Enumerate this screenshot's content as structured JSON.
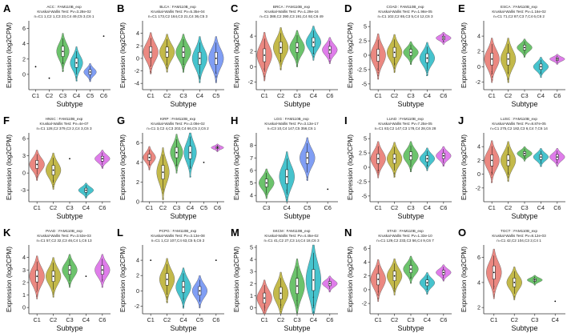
{
  "figure": {
    "xlabel": "Subtype",
    "ylabel": "Expression (log2CPM)"
  },
  "colors": {
    "C1": "#e8736b",
    "C2": "#b8ad2a",
    "C3": "#52b852",
    "C4": "#26b8c4",
    "C5": "#6a8df2",
    "C6": "#d966e6"
  },
  "chart_data": [
    {
      "label": "A",
      "type": "violin",
      "title": "ACC : FAM110B_exp",
      "test": "Kruskal-Wallis Test: Pv=3.28e-02",
      "counts": "n=C1 1,C2 1,C3 23,C4 49,C5 3,C6 1",
      "categories": [
        "C1",
        "C2",
        "C3",
        "C4",
        "C5",
        "C6"
      ],
      "medians": [
        1.0,
        -0.5,
        3.0,
        1.5,
        0.3,
        5.0
      ],
      "spread": [
        0,
        0,
        1.9,
        1.7,
        0.9,
        0
      ],
      "ylim": [
        -2,
        7
      ],
      "yticks": [
        0,
        2,
        4,
        6
      ]
    },
    {
      "label": "B",
      "type": "violin",
      "title": "BLCA : FAM110B_exp",
      "test": "Kruskal-Wallis Test: Pv=5.35e-04",
      "counts": "n=C1 173,C2 164,C3 21,C4 36,C5 3",
      "categories": [
        "C1",
        "C2",
        "C3",
        "C4",
        "C5"
      ],
      "medians": [
        1.0,
        1.0,
        1.0,
        0.0,
        0.0
      ],
      "spread": [
        2.5,
        2.3,
        2.3,
        2.8,
        2.8
      ],
      "ylim": [
        -5,
        6
      ],
      "yticks": [
        -4,
        -2,
        0,
        2,
        4
      ]
    },
    {
      "label": "C",
      "type": "violin",
      "title": "BRCA : FAM110B_exp",
      "test": "Kruskal-Wallis Test: Pv=1.29e-16",
      "counts": "n=C1 388,C2 390,C3 191,C4 92,C6 49",
      "categories": [
        "C1",
        "C2",
        "C3",
        "C4",
        "C6"
      ],
      "medians": [
        1.5,
        2.5,
        2.5,
        3.2,
        2.2
      ],
      "spread": [
        2.4,
        2.1,
        1.8,
        1.7,
        1.3
      ],
      "ylim": [
        -3,
        6
      ],
      "yticks": [
        -2,
        0,
        2,
        4
      ]
    },
    {
      "label": "D",
      "type": "violin",
      "title": "COAD : FAM110B_exp",
      "test": "Kruskal-Wallis Test: Pv=1.96e-05",
      "counts": "n=C1 102,C2 65,C3 5,C4 12,C6 3",
      "categories": [
        "C1",
        "C2",
        "C3",
        "C4",
        "C6"
      ],
      "medians": [
        0.0,
        0.5,
        0.5,
        -0.5,
        3.0
      ],
      "spread": [
        3.0,
        2.5,
        1.5,
        2.2,
        0.8
      ],
      "ylim": [
        -6,
        6
      ],
      "yticks": [
        -5.0,
        -2.5,
        0.0,
        2.5,
        5.0
      ]
    },
    {
      "label": "E",
      "type": "violin",
      "title": "ESCA : FAM110B_exp",
      "test": "Kruskal-Wallis Test: Pv=1.16e-02",
      "counts": "n=C1 71,C2 87,C3 7,C4 6,C6 2",
      "categories": [
        "C1",
        "C2",
        "C3",
        "C4",
        "C6"
      ],
      "medians": [
        1.0,
        1.0,
        2.5,
        0.0,
        1.0
      ],
      "spread": [
        2.2,
        2.2,
        0.9,
        1.0,
        0.5
      ],
      "ylim": [
        -3,
        6
      ],
      "yticks": [
        -2,
        0,
        2,
        4
      ]
    },
    {
      "label": "F",
      "type": "violin",
      "title": "HNSC : FAM110B_exp",
      "test": "Kruskal-Wallis Test: Pv=4e-07",
      "counts": "n=C1 128,C2 379,C3 2,C4 3,C6 3",
      "categories": [
        "C1",
        "C2",
        "C3",
        "C4",
        "C6"
      ],
      "medians": [
        1.5,
        0.5,
        2.5,
        -3.0,
        2.5
      ],
      "spread": [
        2.0,
        2.4,
        0,
        1.0,
        1.2
      ],
      "ylim": [
        -5,
        7
      ],
      "yticks": [
        -3,
        0,
        3,
        6
      ]
    },
    {
      "label": "G",
      "type": "violin",
      "title": "KIRP : FAM110B_exp",
      "test": "Kruskal-Wallis Test: Pv=2.09e-02",
      "counts": "n=C1 3,C2 4,C3 202,C4 66,C5 2,C6 2",
      "categories": [
        "C1",
        "C2",
        "C3",
        "C4",
        "C5",
        "C6"
      ],
      "medians": [
        4.5,
        3.0,
        5.0,
        5.0,
        4.0,
        5.5
      ],
      "spread": [
        0.9,
        2.0,
        1.5,
        1.8,
        0,
        0.3
      ],
      "ylim": [
        0,
        7
      ],
      "yticks": [
        0,
        2,
        4,
        6
      ]
    },
    {
      "label": "H",
      "type": "violin",
      "title": "LGG : FAM110B_exp",
      "test": "Kruskal-Wallis Test: Pv=3.13e-17",
      "counts": "n=C3 10,C4 147,C5 356,C6 1",
      "categories": [
        "C3",
        "C4",
        "C5",
        "C6"
      ],
      "medians": [
        5.0,
        5.5,
        7.0,
        4.5
      ],
      "spread": [
        0.9,
        1.6,
        1.3,
        0
      ],
      "ylim": [
        3.5,
        9
      ],
      "yticks": [
        4,
        5,
        6,
        7,
        8
      ]
    },
    {
      "label": "I",
      "type": "violin",
      "title": "LUAD : FAM110B_exp",
      "test": "Kruskal-Wallis Test: Pv=7.25e-05",
      "counts": "n=C1 83,C2 147,C3 178,C4 28,C6 28",
      "categories": [
        "C1",
        "C2",
        "C3",
        "C4",
        "C6"
      ],
      "medians": [
        1.5,
        1.5,
        2.0,
        1.5,
        2.0
      ],
      "spread": [
        2.4,
        2.3,
        2.0,
        1.5,
        1.3
      ],
      "ylim": [
        -6,
        6
      ],
      "yticks": [
        -5.0,
        -2.5,
        0.0,
        2.5,
        5.0
      ]
    },
    {
      "label": "J",
      "type": "violin",
      "title": "LUSC : FAM110B_exp",
      "test": "Kruskal-Wallis Test: Pv=8.87e-05",
      "counts": "n=C1 275,C2 182,C3 6,C4 7,C6 14",
      "categories": [
        "C1",
        "C2",
        "C3",
        "C4",
        "C6"
      ],
      "medians": [
        2.0,
        2.0,
        3.0,
        2.5,
        2.5
      ],
      "spread": [
        2.3,
        2.2,
        0.8,
        1.0,
        1.0
      ],
      "ylim": [
        -4,
        6
      ],
      "yticks": [
        -2,
        0,
        2,
        4
      ]
    },
    {
      "label": "K",
      "type": "violin",
      "title": "PAAD : FAM110B_exp",
      "test": "Kruskal-Wallis Test: Pv=3.53e-03",
      "counts": "n=C1 57,C2 32,C3 46,C4 1,C6 13",
      "categories": [
        "C1",
        "C2",
        "C3",
        "C4",
        "C6"
      ],
      "medians": [
        2.5,
        2.5,
        3.0,
        2.5,
        3.0
      ],
      "spread": [
        1.3,
        1.2,
        1.0,
        0,
        1.0
      ],
      "ylim": [
        -0.5,
        5
      ],
      "yticks": [
        0,
        1,
        2,
        3,
        4
      ]
    },
    {
      "label": "L",
      "type": "violin",
      "title": "PCPG : FAM110B_exp",
      "test": "Kruskal-Wallis Test: Pv=3.13e-08",
      "counts": "n=C1 1,C2 107,C4 63,C5 5,C6 2",
      "categories": [
        "C1",
        "C2",
        "C4",
        "C5",
        "C6"
      ],
      "medians": [
        4.0,
        1.5,
        0.5,
        0.0,
        4.0
      ],
      "spread": [
        0,
        2.2,
        2.0,
        1.6,
        0
      ],
      "ylim": [
        -3,
        6
      ],
      "yticks": [
        -2,
        0,
        2,
        4
      ]
    },
    {
      "label": "M",
      "type": "violin",
      "title": "SKCM : FAM110B_exp",
      "test": "Kruskal-Wallis Test: Pv=4.45e-02",
      "counts": "n=C1 41,C2 27,C3 14,C4 18,C6 3",
      "categories": [
        "C1",
        "C2",
        "C3",
        "C4",
        "C6"
      ],
      "medians": [
        0.8,
        1.2,
        1.8,
        2.3,
        2.0
      ],
      "spread": [
        1.2,
        1.4,
        1.8,
        2.5,
        0.5
      ],
      "ylim": [
        -0.5,
        5.2
      ],
      "yticks": [
        0.0,
        1.0,
        2.0,
        3.0,
        4.0,
        5.0
      ]
    },
    {
      "label": "N",
      "type": "violin",
      "title": "STAD : FAM110B_exp",
      "test": "Kruskal-Wallis Test: Pv=1.33e-10",
      "counts": "n=C1 129,C2 233,C3 56,C4 9,C6 7",
      "categories": [
        "C1",
        "C2",
        "C3",
        "C4",
        "C6"
      ],
      "medians": [
        1.5,
        2.0,
        3.0,
        1.0,
        2.5
      ],
      "spread": [
        2.3,
        2.0,
        1.5,
        1.2,
        0.9
      ],
      "ylim": [
        -3.5,
        6.5
      ],
      "yticks": [
        -2,
        0,
        2,
        4,
        6
      ]
    },
    {
      "label": "O",
      "type": "violin",
      "title": "TGCT : FAM110B_exp",
      "test": "Kruskal-Wallis Test: Pv=8.12e-03",
      "counts": "n=C1 42,C2 104,C3 2,C4 1",
      "categories": [
        "C1",
        "C2",
        "C3",
        "C4"
      ],
      "medians": [
        4.8,
        4.0,
        4.2,
        2.5
      ],
      "spread": [
        1.5,
        1.0,
        0.3,
        0
      ],
      "ylim": [
        1.5,
        7
      ],
      "yticks": [
        2,
        4,
        6
      ]
    }
  ]
}
